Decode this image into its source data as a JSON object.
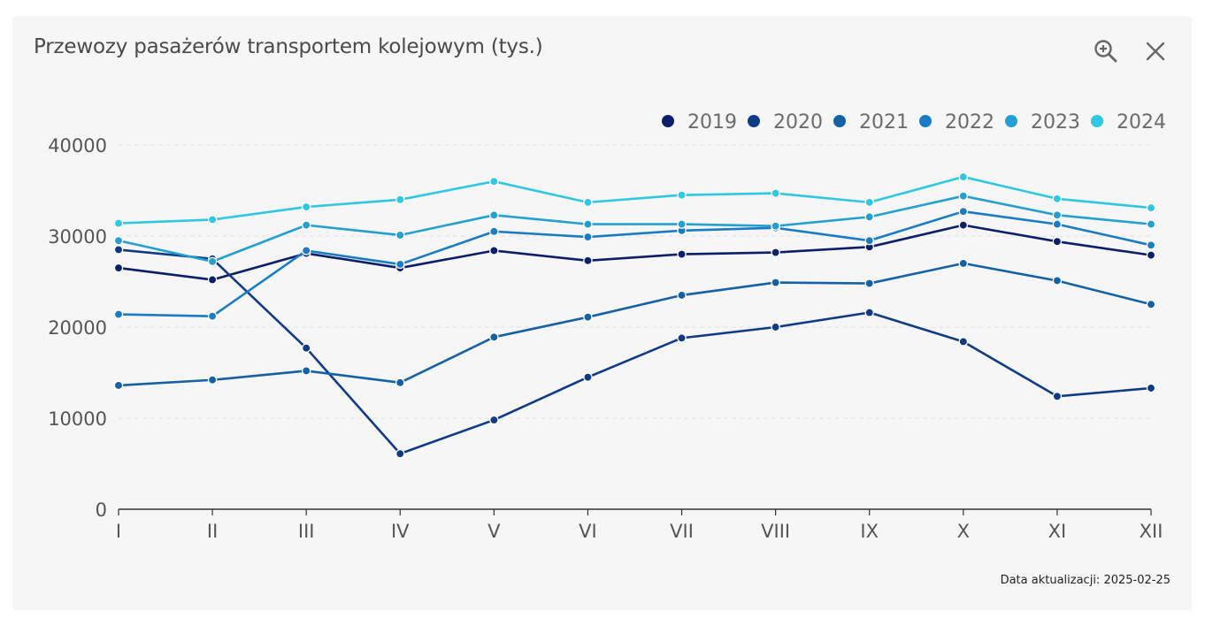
{
  "widget": {
    "title": "Przewozy pasażerów transportem kolejowym (tys.)",
    "update_text": "Data aktualizacji: 2025-02-25",
    "icons": [
      "zoom-in-icon",
      "close-icon"
    ]
  },
  "chart_data": {
    "type": "line",
    "title": "Przewozy pasażerów transportem kolejowym (tys.)",
    "xlabel": "",
    "ylabel": "",
    "categories": [
      "I",
      "II",
      "III",
      "IV",
      "V",
      "VI",
      "VII",
      "VIII",
      "IX",
      "X",
      "XI",
      "XII"
    ],
    "ylim": [
      0,
      40000
    ],
    "yticks": [
      0,
      10000,
      20000,
      30000,
      40000
    ],
    "grid": true,
    "legend_position": "top-right",
    "series": [
      {
        "name": "2019",
        "color": "#0b1f6b",
        "values": [
          26500,
          25200,
          28100,
          26500,
          28400,
          27300,
          28000,
          28200,
          28800,
          31200,
          29400,
          27900
        ]
      },
      {
        "name": "2020",
        "color": "#0f3a85",
        "values": [
          28500,
          27500,
          17700,
          6100,
          9800,
          14500,
          18800,
          20000,
          21600,
          18400,
          12400,
          13300
        ]
      },
      {
        "name": "2021",
        "color": "#1561a5",
        "values": [
          13600,
          14200,
          15200,
          13900,
          18900,
          21100,
          23500,
          24900,
          24800,
          27000,
          25100,
          22500
        ]
      },
      {
        "name": "2022",
        "color": "#1a7cc4",
        "values": [
          21400,
          21200,
          28400,
          26900,
          30500,
          29900,
          30600,
          30900,
          29500,
          32700,
          31300,
          29000
        ]
      },
      {
        "name": "2023",
        "color": "#23a0d0",
        "values": [
          29500,
          27200,
          31200,
          30100,
          32300,
          31300,
          31300,
          31100,
          32100,
          34400,
          32300,
          31300
        ]
      },
      {
        "name": "2024",
        "color": "#2ec8e2",
        "values": [
          31400,
          31800,
          33200,
          34000,
          36000,
          33700,
          34500,
          34700,
          33700,
          36500,
          34100,
          33100
        ]
      }
    ]
  }
}
